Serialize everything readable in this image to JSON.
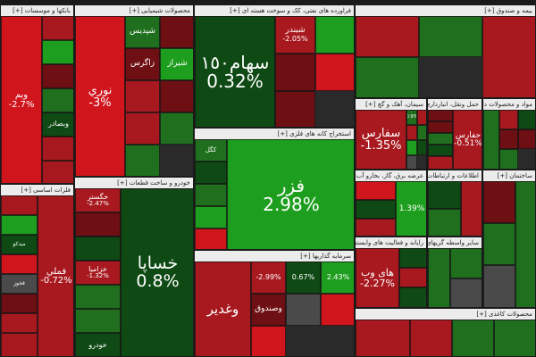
{
  "chart_data": {
    "type": "treemap",
    "colors": {
      "up_strong": "#1e9e1e",
      "up": "#1f6f1f",
      "up_dark": "#0f4a14",
      "down": "#a8191f",
      "down_strong": "#d0151c",
      "down_dark": "#6e0f14",
      "flat": "#4a4a4a"
    },
    "sectors": [
      {
        "name": "بانکها و موسسات",
        "tiles": [
          {
            "name": "وبم",
            "change": "-2.7%"
          },
          {
            "name": "",
            "change": ""
          },
          {
            "name": "",
            "change": ""
          },
          {
            "name": "",
            "change": ""
          },
          {
            "name": "",
            "change": ""
          },
          {
            "name": "وبصادر",
            "change": ""
          },
          {
            "name": "",
            "change": ""
          },
          {
            "name": "",
            "change": ""
          }
        ]
      },
      {
        "name": "فلزات اساسی",
        "tiles": [
          {
            "name": "فملي",
            "change": "-0.72%"
          },
          {
            "name": "",
            "change": ""
          },
          {
            "name": "",
            "change": ""
          },
          {
            "name": "میدکو",
            "change": ""
          },
          {
            "name": "",
            "change": ""
          },
          {
            "name": "فخوز",
            "change": ""
          },
          {
            "name": "",
            "change": ""
          },
          {
            "name": "",
            "change": ""
          },
          {
            "name": "",
            "change": ""
          }
        ]
      },
      {
        "name": "محصولات شیمیایی",
        "tiles": [
          {
            "name": "نوري",
            "change": "-3%"
          },
          {
            "name": "شپدیس",
            "change": ""
          },
          {
            "name": "",
            "change": ""
          },
          {
            "name": "زاگرس",
            "change": ""
          },
          {
            "name": "شیراز",
            "change": ""
          },
          {
            "name": "",
            "change": ""
          },
          {
            "name": "",
            "change": ""
          },
          {
            "name": "",
            "change": ""
          },
          {
            "name": "",
            "change": ""
          },
          {
            "name": "",
            "change": ""
          }
        ]
      },
      {
        "name": "خودرو و ساخت قطعات",
        "tiles": [
          {
            "name": "خساپا",
            "change": "0.8%"
          },
          {
            "name": "خگستر",
            "change": "-2.47%"
          },
          {
            "name": "",
            "change": ""
          },
          {
            "name": "",
            "change": ""
          },
          {
            "name": "خزامیا",
            "change": "-1.32%"
          },
          {
            "name": "",
            "change": ""
          },
          {
            "name": "",
            "change": ""
          },
          {
            "name": "خودرو",
            "change": ""
          }
        ]
      },
      {
        "name": "فراورده های نفتی، کک و سوخت هسته ای",
        "tiles": [
          {
            "name": "سهام١٥٠",
            "change": "0.32%"
          },
          {
            "name": "شبندر",
            "change": "-2.05%"
          },
          {
            "name": "",
            "change": ""
          },
          {
            "name": "",
            "change": ""
          },
          {
            "name": "",
            "change": ""
          },
          {
            "name": "",
            "change": ""
          }
        ]
      },
      {
        "name": "استخراج کانه های فلزی",
        "tiles": [
          {
            "name": "فزر",
            "change": "2.98%"
          },
          {
            "name": "کگل",
            "change": ""
          },
          {
            "name": "",
            "change": ""
          },
          {
            "name": "",
            "change": ""
          },
          {
            "name": "",
            "change": ""
          },
          {
            "name": "",
            "change": ""
          }
        ]
      },
      {
        "name": "سرمایه گذاریها",
        "tiles": [
          {
            "name": "وغدیر",
            "change": ""
          },
          {
            "name": "",
            "change": "-2.99%"
          },
          {
            "name": "",
            "change": "0.67%"
          },
          {
            "name": "",
            "change": "2.43%"
          },
          {
            "name": "وصندوق",
            "change": ""
          },
          {
            "name": "",
            "change": ""
          },
          {
            "name": "",
            "change": ""
          },
          {
            "name": "",
            "change": ""
          }
        ]
      },
      {
        "name": "بیمه و صندوق",
        "tiles": [
          {
            "name": "",
            "change": ""
          },
          {
            "name": "",
            "change": ""
          },
          {
            "name": "",
            "change": ""
          },
          {
            "name": "",
            "change": ""
          }
        ]
      },
      {
        "name": "سیمان، آهک و گچ",
        "tiles": [
          {
            "name": "سفارس",
            "change": "-1.35%"
          },
          {
            "name": "",
            "change": "0.9%"
          },
          {
            "name": "",
            "change": ""
          },
          {
            "name": "",
            "change": ""
          },
          {
            "name": "",
            "change": ""
          },
          {
            "name": "",
            "change": ""
          },
          {
            "name": "",
            "change": ""
          },
          {
            "name": "",
            "change": ""
          }
        ]
      },
      {
        "name": "حمل ونقل، انبارداری و ارتباطات",
        "tiles": [
          {
            "name": "حفارس",
            "change": "-0.51%"
          },
          {
            "name": "",
            "change": ""
          },
          {
            "name": "",
            "change": ""
          },
          {
            "name": "",
            "change": ""
          },
          {
            "name": "",
            "change": ""
          },
          {
            "name": "",
            "change": ""
          }
        ]
      },
      {
        "name": "مواد و محصولات دارویی",
        "tiles": [
          {
            "name": "",
            "change": ""
          },
          {
            "name": "",
            "change": ""
          },
          {
            "name": "",
            "change": ""
          },
          {
            "name": "",
            "change": ""
          },
          {
            "name": "",
            "change": ""
          },
          {
            "name": "",
            "change": ""
          }
        ]
      },
      {
        "name": "عرضه برق، گاز، بخارو آب گرم",
        "tiles": [
          {
            "name": "",
            "change": "1.39%"
          },
          {
            "name": "",
            "change": ""
          },
          {
            "name": "",
            "change": ""
          },
          {
            "name": "",
            "change": ""
          }
        ]
      },
      {
        "name": "رایانه و فعالیت های وابسته",
        "tiles": [
          {
            "name": "های وب",
            "change": "-2.27%"
          },
          {
            "name": "",
            "change": ""
          },
          {
            "name": "",
            "change": ""
          },
          {
            "name": "",
            "change": ""
          }
        ]
      },
      {
        "name": "اطلاعات و ارتباطات",
        "tiles": [
          {
            "name": "",
            "change": ""
          },
          {
            "name": "",
            "change": ""
          },
          {
            "name": "",
            "change": ""
          }
        ]
      },
      {
        "name": "ساير واسطه گريهای مالي",
        "tiles": [
          {
            "name": "",
            "change": ""
          },
          {
            "name": "",
            "change": ""
          },
          {
            "name": "",
            "change": ""
          }
        ]
      },
      {
        "name": "ساختمان",
        "tiles": [
          {
            "name": "",
            "change": ""
          },
          {
            "name": "",
            "change": ""
          },
          {
            "name": "",
            "change": ""
          },
          {
            "name": "",
            "change": ""
          }
        ]
      },
      {
        "name": "محصولات کاغذی",
        "tiles": [
          {
            "name": "",
            "change": ""
          },
          {
            "name": "",
            "change": ""
          },
          {
            "name": "",
            "change": ""
          },
          {
            "name": "",
            "change": ""
          }
        ]
      }
    ]
  }
}
